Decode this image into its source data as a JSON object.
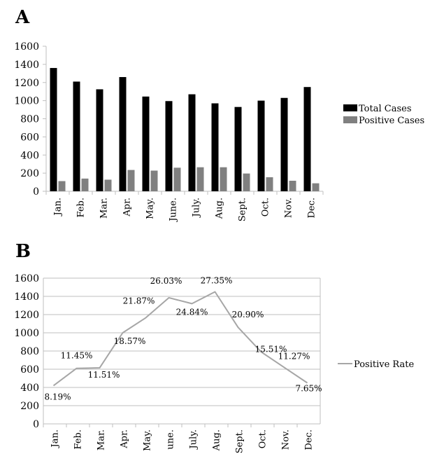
{
  "chart_data": [
    {
      "panel_label": "A",
      "type": "bar",
      "categories": [
        "Jan.",
        "Feb.",
        "Mar.",
        "Apr.",
        "May.",
        "June.",
        "July.",
        "Aug.",
        "Sept.",
        "Oct.",
        "Nov.",
        "Dec."
      ],
      "series": [
        {
          "name": "Total Cases",
          "color": "#000000",
          "values": [
            1360,
            1210,
            1125,
            1260,
            1045,
            995,
            1070,
            970,
            930,
            1000,
            1030,
            1150
          ]
        },
        {
          "name": "Positive Cases",
          "color": "#808080",
          "values": [
            112,
            140,
            128,
            235,
            228,
            260,
            265,
            265,
            196,
            155,
            116,
            88
          ]
        }
      ],
      "yticks": [
        0,
        200,
        400,
        600,
        800,
        1000,
        1200,
        1400,
        1600
      ],
      "ylim": [
        0,
        1600
      ],
      "grid": false,
      "legend_position": "right"
    },
    {
      "panel_label": "B",
      "type": "line",
      "categories": [
        "Jan.",
        "Feb.",
        "Mar.",
        "Apr.",
        "May.",
        "June.",
        "July.",
        "Aug.",
        "Sept.",
        "Oct.",
        "Nov.",
        "Dec."
      ],
      "category_labels": [
        "Jan.",
        "Feb.",
        "Mar.",
        "Apr.",
        "May.",
        "une.",
        "July.",
        "Aug.",
        "Sept.",
        "Oct.",
        "Nov.",
        "Dec."
      ],
      "series": [
        {
          "name": "Positive Rate",
          "color": "#a6a6a6",
          "values": [
            420,
            610,
            615,
            1000,
            1165,
            1385,
            1320,
            1450,
            1060,
            790,
            620,
            450
          ],
          "data_labels": [
            "8.19%",
            "11.45%",
            "11.51%",
            "18.57%",
            "21.87%",
            "26.03%",
            "24.84%",
            "27.35%",
            "20.90%",
            "15.51%",
            "11.27%",
            "7.65%"
          ]
        }
      ],
      "yticks": [
        0,
        200,
        400,
        600,
        800,
        1000,
        1200,
        1400,
        1600
      ],
      "ytick_labels": [
        "0",
        "200",
        "400",
        "600",
        "800",
        "1000",
        "1200",
        "1400",
        "1600"
      ],
      "ylim": [
        0,
        1600
      ],
      "grid": true,
      "legend_position": "right"
    }
  ]
}
